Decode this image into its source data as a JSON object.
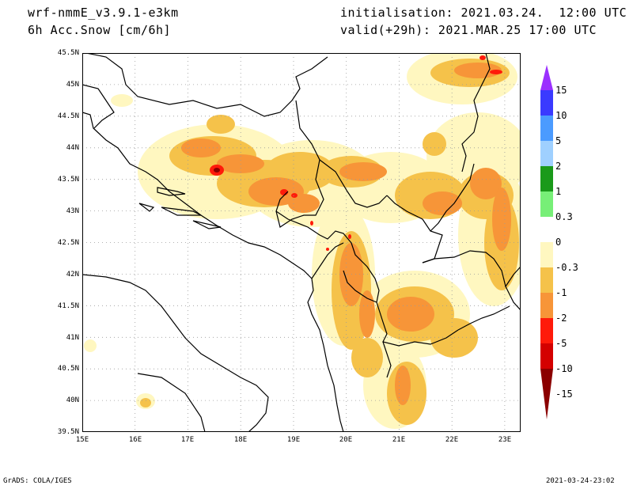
{
  "header": {
    "model": "wrf-nmmE_v3.9.1-e3km",
    "variable": "6h Acc.Snow [cm/6h]",
    "init": "initialisation: 2021.03.24.  12:00 UTC",
    "valid": "valid(+29h): 2021.MAR.25 17:00 UTC"
  },
  "footer": {
    "left": "GrADS: COLA/IGES",
    "right": "2021-03-24-23:02"
  },
  "map": {
    "lat_labels": [
      "45.5N",
      "45N",
      "44.5N",
      "44N",
      "43.5N",
      "43N",
      "42.5N",
      "42N",
      "41.5N",
      "41N",
      "40.5N",
      "40N",
      "39.5N"
    ],
    "lon_labels": [
      "15E",
      "16E",
      "17E",
      "18E",
      "19E",
      "20E",
      "21E",
      "22E",
      "23E"
    ],
    "lat_range": [
      39.5,
      45.5
    ],
    "lon_range": [
      15,
      23.3
    ],
    "grid": "dotted"
  },
  "colorbar": {
    "labels": [
      "15",
      "10",
      "5",
      "2",
      "1",
      "0.3",
      "0",
      "-0.3",
      "-1",
      "-2",
      "-5",
      "-10",
      "-15"
    ],
    "colors": [
      "#9b30ff",
      "#3a3aff",
      "#4b9bff",
      "#9fd0ff",
      "#1a9a1a",
      "#77ef77",
      "#ffffff",
      "#fff7c0",
      "#f5c24a",
      "#f79538",
      "#ff1a0a",
      "#d40000",
      "#8b0000"
    ]
  }
}
